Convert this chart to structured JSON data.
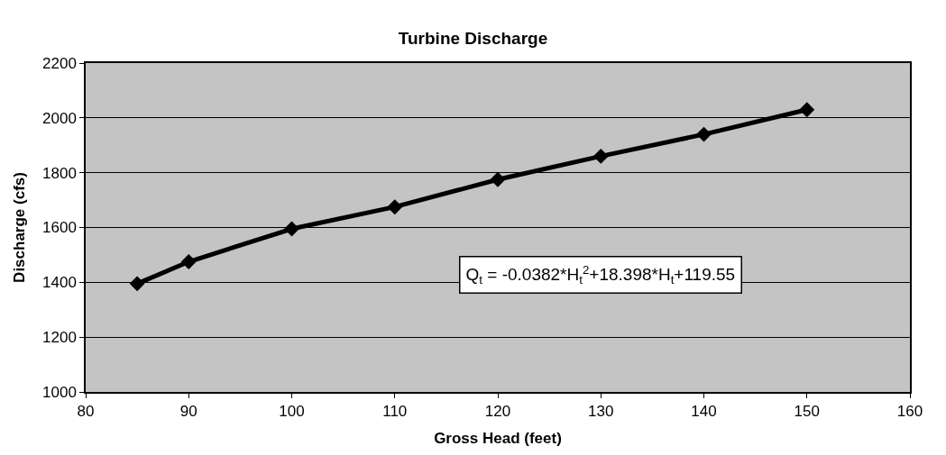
{
  "chart_data": {
    "type": "line",
    "title": "Turbine Discharge",
    "xlabel": "Gross Head (feet)",
    "ylabel": "Discharge (cfs)",
    "x": [
      85,
      90,
      100,
      110,
      120,
      130,
      140,
      150
    ],
    "series": [
      {
        "color": "#000000",
        "values": [
          1395,
          1475,
          1595,
          1675,
          1775,
          1860,
          1940,
          2030
        ]
      }
    ],
    "xlim": [
      80,
      160
    ],
    "xticks": [
      80,
      90,
      100,
      110,
      120,
      130,
      140,
      150,
      160
    ],
    "ylim": [
      1000,
      2200
    ],
    "yticks": [
      1000,
      1200,
      1400,
      1600,
      1800,
      2000,
      2200
    ],
    "grid": "y",
    "marker": "diamond",
    "line_style": "solid",
    "annotations": [
      "Q$_{t}$ = -0.0382*H$_{t}$$^{2}$+18.398*H$_{t}$+119.55"
    ]
  }
}
